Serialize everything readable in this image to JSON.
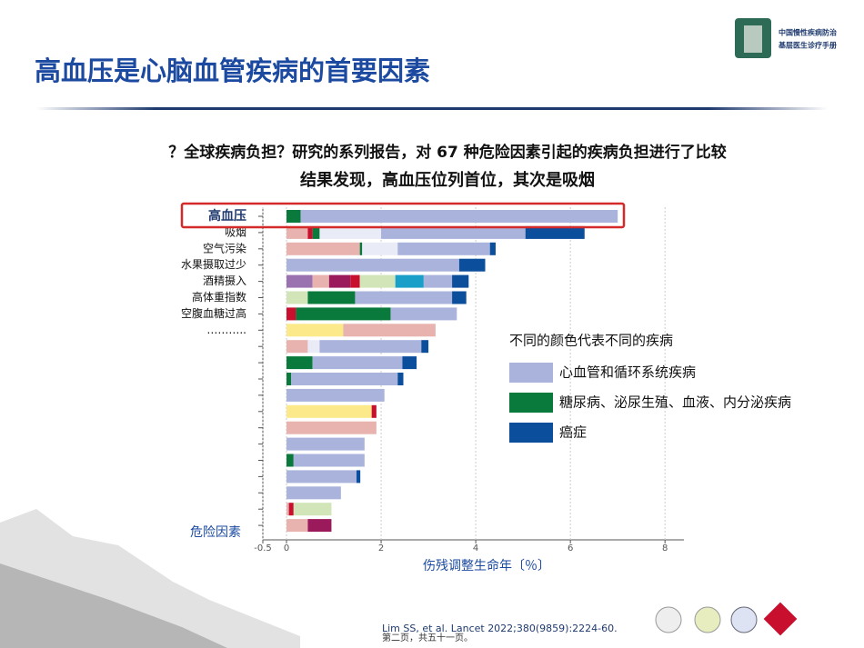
{
  "header": {
    "title": "高血压是心脑血管疾病的首要因素",
    "logo_text": [
      "中国慢性疾病防治",
      "基层医生诊疗手册"
    ]
  },
  "subtitle_lines": [
    "？全球疾病负担？研究的系列报告，对 67 种危险因素引起的疾病负担进行了比较",
    "结果发现，高血压位列首位，其次是吸烟"
  ],
  "chart_data": {
    "type": "stacked-barh",
    "categories": [
      "高血压",
      "吸烟",
      "空气污染",
      "水果摄取过少",
      "酒精摄入",
      "高体重指数",
      "空腹血糖过高",
      "………..",
      null,
      null,
      null,
      null,
      null,
      null,
      null,
      null,
      null,
      null,
      null,
      null
    ],
    "y_label": "危险因素",
    "x_label": "伤残调整生命年〔％〕",
    "legend_title": "不同的颜色代表不同的疾病",
    "xlim": [
      -0.5,
      8.4
    ],
    "xticks": [
      -0.5,
      0,
      2,
      4,
      6,
      8
    ],
    "series": [
      {
        "color": "#fbe98a",
        "values": [
          null,
          null,
          null,
          null,
          null,
          null,
          null,
          1.2,
          null,
          null,
          null,
          null,
          1.8,
          null,
          null,
          null,
          null,
          null,
          null,
          null
        ]
      },
      {
        "color": "#9b72b0",
        "values": [
          null,
          null,
          null,
          null,
          0.55,
          null,
          null,
          null,
          null,
          null,
          null,
          null,
          null,
          null,
          null,
          null,
          null,
          null,
          null,
          null
        ]
      },
      {
        "color": "#e8b2ae",
        "values": [
          null,
          0.45,
          1.55,
          null,
          0.35,
          null,
          null,
          1.95,
          0.45,
          null,
          null,
          null,
          null,
          1.9,
          null,
          null,
          null,
          null,
          0.05,
          0.45
        ]
      },
      {
        "color": "#9a1a5c",
        "values": [
          null,
          null,
          null,
          null,
          0.45,
          null,
          null,
          null,
          null,
          null,
          null,
          null,
          null,
          null,
          null,
          null,
          null,
          null,
          null,
          0.5
        ]
      },
      {
        "color": "#c8102e",
        "values": [
          null,
          0.1,
          null,
          null,
          0.2,
          null,
          0.2,
          null,
          null,
          null,
          null,
          null,
          0.1,
          null,
          null,
          null,
          null,
          null,
          0.1,
          null
        ]
      },
      {
        "color": "#d2e5b8",
        "values": [
          null,
          null,
          null,
          null,
          0.75,
          0.45,
          null,
          null,
          null,
          null,
          null,
          null,
          null,
          null,
          null,
          null,
          null,
          null,
          0.8,
          null
        ]
      },
      {
        "color": "#1a9fc9",
        "values": [
          null,
          null,
          null,
          null,
          0.6,
          null,
          null,
          null,
          null,
          null,
          null,
          null,
          null,
          null,
          null,
          null,
          null,
          null,
          null,
          null
        ]
      },
      {
        "name": "糖尿病、泌尿生殖、血液、内分泌疾病",
        "color": "#0a7a3c",
        "values": [
          0.3,
          0.15,
          0.05,
          null,
          null,
          1.0,
          2.0,
          null,
          null,
          0.55,
          0.1,
          null,
          null,
          null,
          null,
          0.15,
          null,
          null,
          null,
          null
        ]
      },
      {
        "color": "#e9ebf6",
        "values": [
          null,
          1.3,
          0.75,
          null,
          null,
          null,
          null,
          null,
          0.25,
          null,
          null,
          null,
          null,
          null,
          null,
          null,
          null,
          null,
          null,
          null
        ]
      },
      {
        "name": "心血管和循环系统疾病",
        "color": "#a9b3dc",
        "values": [
          6.7,
          3.05,
          1.95,
          3.65,
          0.6,
          2.05,
          1.4,
          null,
          2.15,
          1.9,
          2.25,
          2.07,
          null,
          null,
          1.65,
          1.5,
          1.48,
          1.15,
          null,
          null
        ]
      },
      {
        "name": "癌症",
        "color": "#0b4e9c",
        "values": [
          null,
          1.25,
          0.12,
          0.55,
          0.35,
          0.3,
          null,
          null,
          0.15,
          0.3,
          0.12,
          null,
          null,
          null,
          null,
          null,
          0.08,
          null,
          null,
          null
        ]
      }
    ]
  },
  "citation": "Lim SS, et al. Lancet 2022;380(9859):2224-60.",
  "footer": "第二页，共五十一页。"
}
